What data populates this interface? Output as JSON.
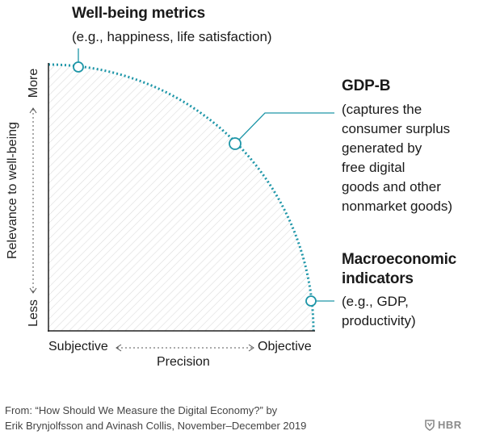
{
  "labels": {
    "wellbeing_title": "Well-being metrics",
    "wellbeing_desc": "(e.g., happiness, life satisfaction)",
    "gdpb_title": "GDP-B",
    "gdpb_desc_lines": [
      "(captures the",
      "consumer surplus",
      "generated by",
      "free digital",
      "goods and other",
      "nonmarket goods)"
    ],
    "macro_title_lines": [
      "Macroeconomic",
      "indicators"
    ],
    "macro_desc_lines": [
      "(e.g., GDP,",
      "productivity)"
    ]
  },
  "axes": {
    "y_label": "Relevance to well-being",
    "y_high": "More",
    "y_low": "Less",
    "x_label": "Precision",
    "x_low": "Subjective",
    "x_high": "Objective"
  },
  "footer": {
    "line1": "From: “How Should We Measure the Digital Economy?” by",
    "line2": "Erik Brynjolfsson and Avinash Collis, November–December 2019",
    "brand": "HBR"
  },
  "colors": {
    "accent": "#1e96a8",
    "axis": "#222222",
    "hatch": "#d9d9d9"
  }
}
